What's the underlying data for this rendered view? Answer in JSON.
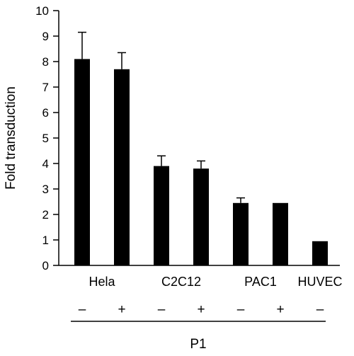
{
  "chart_data": {
    "type": "bar",
    "title": "",
    "ylabel": "Fold transduction",
    "xlabel": "",
    "ylim": [
      0,
      10
    ],
    "yticks": [
      "0",
      "1",
      "2",
      "3",
      "4",
      "5",
      "6",
      "7",
      "8",
      "9",
      "10"
    ],
    "grid": false,
    "bar_color": "#000000",
    "bars": [
      {
        "group": "Hela",
        "treatment": "–",
        "value": 8.1,
        "error": 1.05
      },
      {
        "group": "Hela",
        "treatment": "+",
        "value": 7.7,
        "error": 0.65
      },
      {
        "group": "C2C12",
        "treatment": "–",
        "value": 3.9,
        "error": 0.4
      },
      {
        "group": "C2C12",
        "treatment": "+",
        "value": 3.8,
        "error": 0.3
      },
      {
        "group": "PAC1",
        "treatment": "–",
        "value": 2.45,
        "error": 0.2
      },
      {
        "group": "PAC1",
        "treatment": "+",
        "value": 2.45,
        "error": 0
      },
      {
        "group": "HUVEC",
        "treatment": "–",
        "value": 0.95,
        "error": 0
      }
    ],
    "groups": [
      "Hela",
      "C2C12",
      "PAC1",
      "HUVEC"
    ],
    "bracket_label": "P1"
  }
}
